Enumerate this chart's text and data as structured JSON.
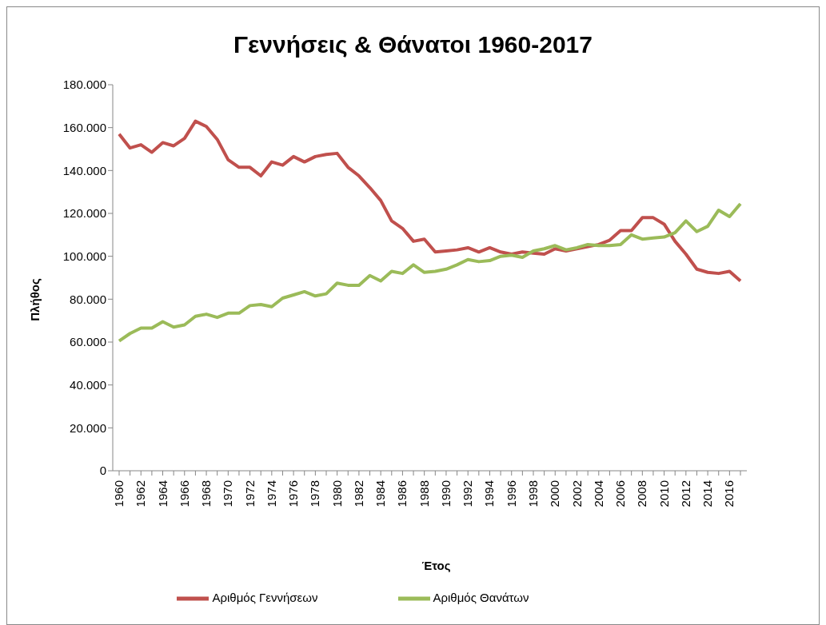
{
  "chart_data": {
    "type": "line",
    "title": "Γεννήσεις & Θάνατοι 1960-2017",
    "xlabel": "Έτος",
    "ylabel": "Πλήθος",
    "categories": [
      "1960",
      null,
      "1962",
      null,
      "1964",
      null,
      "1966",
      null,
      "1968",
      null,
      "1970",
      null,
      "1972",
      null,
      "1974",
      null,
      "1976",
      null,
      "1978",
      null,
      "1980",
      null,
      "1982",
      null,
      "1984",
      null,
      "1986",
      null,
      "1988",
      null,
      "1990",
      null,
      "1992",
      null,
      "1994",
      null,
      "1996",
      null,
      "1998",
      null,
      "2000",
      null,
      "2002",
      null,
      "2004",
      null,
      "2006",
      null,
      "2008",
      null,
      "2010",
      null,
      "2012",
      null,
      "2014",
      null,
      "2016",
      null
    ],
    "series": [
      {
        "name": "Αριθμός Γεννήσεων",
        "color": "#c0504d",
        "values": [
          157000,
          150500,
          152000,
          148500,
          153000,
          151500,
          155000,
          163000,
          160500,
          154500,
          145000,
          141500,
          141500,
          137500,
          144000,
          142500,
          146500,
          144000,
          146500,
          147500,
          148000,
          141500,
          137500,
          132000,
          126000,
          116500,
          113000,
          107000,
          108000,
          102000,
          102500,
          103000,
          104000,
          102000,
          104000,
          102000,
          101000,
          102000,
          101500,
          101000,
          103500,
          102500,
          103500,
          104500,
          105500,
          107500,
          112000,
          112000,
          118000,
          118000,
          115000,
          107000,
          101000,
          94000,
          92500,
          92000,
          93000,
          88500
        ]
      },
      {
        "name": "Αριθμός Θανάτων",
        "color": "#9bbb59",
        "values": [
          60500,
          64000,
          66500,
          66500,
          69500,
          67000,
          68000,
          72000,
          73000,
          71500,
          73500,
          73500,
          77000,
          77500,
          76500,
          80500,
          82000,
          83500,
          81500,
          82500,
          87500,
          86500,
          86500,
          91000,
          88500,
          93000,
          92000,
          96000,
          92500,
          93000,
          94000,
          96000,
          98500,
          97500,
          98000,
          100000,
          100500,
          99500,
          102500,
          103500,
          105000,
          103000,
          104000,
          105500,
          105000,
          105000,
          105500,
          110000,
          108000,
          108500,
          109000,
          111000,
          116500,
          111500,
          114000,
          121500,
          118500,
          124500
        ]
      }
    ],
    "ylim": [
      0,
      180000
    ],
    "yticks": [
      0,
      {
        "value": 20000,
        "label": "20.000"
      },
      {
        "value": 40000,
        "label": "40.000"
      },
      {
        "value": 60000,
        "label": "60.000"
      },
      {
        "value": 80000,
        "label": "80.000"
      },
      {
        "value": 100000,
        "label": "100.000"
      },
      {
        "value": 120000,
        "label": "120.000"
      },
      {
        "value": 140000,
        "label": "140.000"
      },
      {
        "value": 160000,
        "label": "160.000"
      },
      {
        "value": 180000,
        "label": "180.000"
      }
    ],
    "grid": false,
    "legend": "bottom",
    "marker": "none",
    "line_style": "solid"
  }
}
